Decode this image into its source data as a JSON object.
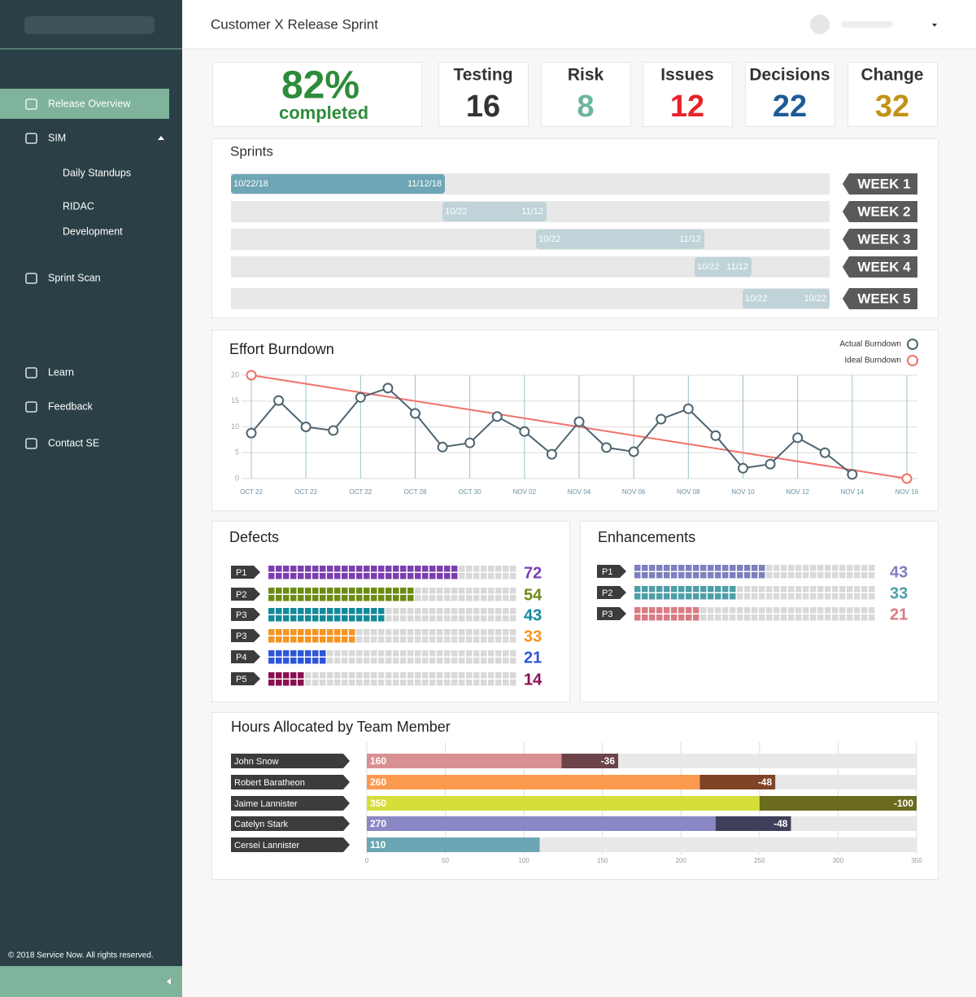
{
  "sidebar": {
    "nav": [
      "Release Overview",
      "SIM",
      "Daily Standups",
      "RIDAC",
      "Development",
      "Sprint Scan",
      "Learn",
      "Feedback",
      "Contact SE"
    ],
    "footer": "© 2018 Service Now. All rights reserved."
  },
  "header": {
    "title": "Customer X Release Sprint"
  },
  "progress": {
    "value": "82%",
    "label": "completed"
  },
  "stats": [
    {
      "label": "Testing",
      "value": 16,
      "color": "#333333"
    },
    {
      "label": "Risk",
      "value": 8,
      "color": "#6fb59a"
    },
    {
      "label": "Issues",
      "value": 12,
      "color": "#e8232a"
    },
    {
      "label": "Decisions",
      "value": 22,
      "color": "#1e5a96"
    },
    {
      "label": "Change",
      "value": 32,
      "color": "#c29217"
    }
  ],
  "sprints": {
    "title": "Sprints",
    "rows": [
      {
        "start": "10/22/18",
        "end": "11/12/18",
        "week": "WEEK 1"
      },
      {
        "start": "10/22",
        "end": "11/12",
        "week": "WEEK 2"
      },
      {
        "start": "10/22",
        "end": "11/12",
        "week": "WEEK 3"
      },
      {
        "start": "10/22",
        "end": "11/12",
        "week": "WEEK 4"
      },
      {
        "start": "10/22",
        "end": "10/22",
        "week": "WEEK 5"
      }
    ]
  },
  "burndown": {
    "type": "line",
    "title": "Effort Burndown",
    "categories": [
      "OCT 22",
      "OCT 22",
      "OCT 22",
      "OCT 28",
      "OCT 30",
      "NOV 02",
      "NOV 04",
      "NOV 06",
      "NOV 08",
      "NOV 10",
      "NOV 12",
      "NOV 14",
      "NOV 16"
    ],
    "xlim": [
      0,
      12
    ],
    "ylim": [
      0,
      20
    ],
    "yticks": [
      0,
      5,
      10,
      15,
      20
    ],
    "grid": true,
    "series": [
      {
        "name": "Actual Burndown",
        "color": "#4e6470",
        "x": [
          0,
          0.5,
          1,
          1.5,
          2,
          2.5,
          3,
          3.5,
          4,
          4.5,
          5,
          5.5,
          6,
          6.5,
          7,
          7.5,
          8,
          8.5,
          9,
          9.5,
          10,
          10.5,
          11
        ],
        "values": [
          8.8,
          15.1,
          10,
          9.3,
          15.7,
          17.5,
          12.6,
          6.1,
          6.9,
          12,
          9.1,
          4.7,
          11,
          6,
          5.2,
          11.5,
          13.5,
          8.3,
          2,
          2.8,
          7.9,
          5,
          0.8
        ]
      },
      {
        "name": "Ideal Burndown",
        "color": "#f07167",
        "x": [
          0,
          12
        ],
        "values": [
          20,
          0
        ]
      }
    ]
  },
  "defects": {
    "title": "Defects",
    "rows": [
      {
        "label": "P1",
        "value": 72,
        "color": "#7b3fb0"
      },
      {
        "label": "P2",
        "value": 54,
        "color": "#6a8c12"
      },
      {
        "label": "P3",
        "value": 43,
        "color": "#138a9a"
      },
      {
        "label": "P3",
        "value": 33,
        "color": "#f5941f"
      },
      {
        "label": "P4",
        "value": 21,
        "color": "#2e56d8"
      },
      {
        "label": "P5",
        "value": 14,
        "color": "#8a1050"
      }
    ]
  },
  "enhancements": {
    "title": "Enhancements",
    "rows": [
      {
        "label": "P1",
        "value": 43,
        "color": "#7d7fbf"
      },
      {
        "label": "P2",
        "value": 33,
        "color": "#4e9ea8"
      },
      {
        "label": "P3",
        "value": 21,
        "color": "#d97b84"
      }
    ]
  },
  "hours": {
    "type": "bar",
    "title": "Hours Allocated by Team Member",
    "categories": [
      "John Snow",
      "Robert Baratheon",
      "Jaime Lannister",
      "Catelyn Stark",
      "Cersei Lannister"
    ],
    "values": [
      160,
      260,
      350,
      270,
      110
    ],
    "over": [
      -36,
      -48,
      -100,
      -48,
      null
    ],
    "colors": [
      "#d99092",
      "#fb9a4f",
      "#d6df3a",
      "#8a88c4",
      "#6aa6b4"
    ],
    "over_colors": [
      "#6b4348",
      "#7f4326",
      "#6b6b1e",
      "#3f3f5c",
      null
    ],
    "xlim": [
      0,
      350
    ],
    "xticks": [
      0,
      50,
      100,
      150,
      200,
      250,
      300,
      350
    ],
    "grid": true
  }
}
